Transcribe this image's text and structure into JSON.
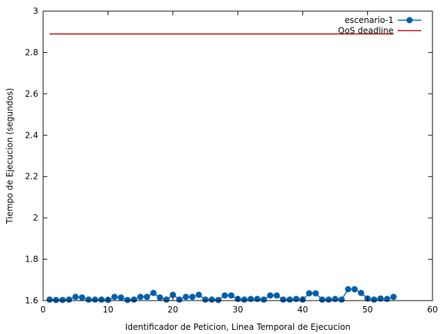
{
  "chart_data": {
    "type": "line",
    "title": "",
    "xlabel": "Identificador de Peticion, Linea Temporal de Ejecucion",
    "ylabel": "Tiempo de Ejecucion (segundos)",
    "xlim": [
      0,
      60
    ],
    "ylim": [
      1.6,
      3
    ],
    "xticks": [
      "0",
      "10",
      "20",
      "30",
      "40",
      "50",
      "60"
    ],
    "yticks": [
      "1.6",
      "1.8",
      "2",
      "2.2",
      "2.4",
      "2.6",
      "2.8",
      "3"
    ],
    "grid": false,
    "legend_position": "top-right",
    "series": [
      {
        "name": "escenario-1",
        "color": "#0060ad",
        "marker": "circle",
        "x": [
          1,
          2,
          3,
          4,
          5,
          6,
          7,
          8,
          9,
          10,
          11,
          12,
          13,
          14,
          15,
          16,
          17,
          18,
          19,
          20,
          21,
          22,
          23,
          24,
          25,
          26,
          27,
          28,
          29,
          30,
          31,
          32,
          33,
          34,
          35,
          36,
          37,
          38,
          39,
          40,
          41,
          42,
          43,
          44,
          45,
          46,
          47,
          48,
          49,
          50,
          51,
          52,
          53,
          54
        ],
        "y": [
          1.605,
          1.603,
          1.603,
          1.605,
          1.618,
          1.615,
          1.605,
          1.605,
          1.605,
          1.603,
          1.618,
          1.615,
          1.603,
          1.605,
          1.618,
          1.618,
          1.637,
          1.615,
          1.605,
          1.628,
          1.605,
          1.618,
          1.618,
          1.628,
          1.605,
          1.605,
          1.603,
          1.625,
          1.625,
          1.608,
          1.605,
          1.608,
          1.608,
          1.605,
          1.625,
          1.625,
          1.605,
          1.605,
          1.608,
          1.605,
          1.635,
          1.635,
          1.605,
          1.605,
          1.608,
          1.605,
          1.655,
          1.655,
          1.637,
          1.61,
          1.605,
          1.61,
          1.608,
          1.618
        ]
      },
      {
        "name": "QoS deadline",
        "color": "#c00000",
        "marker": "none",
        "x": [
          1,
          54
        ],
        "y": [
          2.89,
          2.89
        ]
      }
    ]
  }
}
